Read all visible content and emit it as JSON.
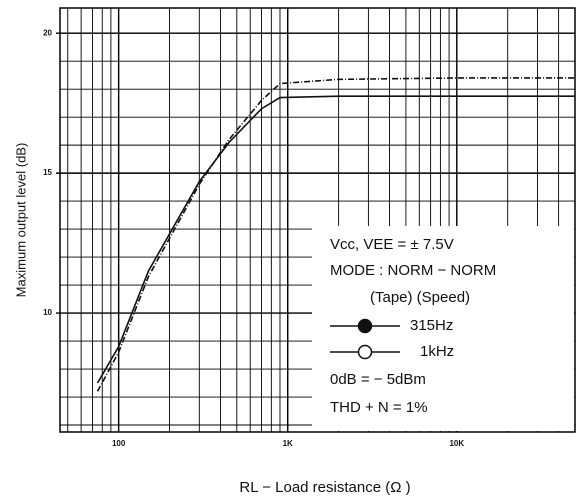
{
  "chart_data": {
    "type": "line",
    "x_label": "RL − Load resistance   (Ω )",
    "y_label": "Maximum output level   (dB)",
    "x": [
      75,
      100,
      150,
      300,
      450,
      700,
      900,
      2000,
      10000,
      50000
    ],
    "series": [
      {
        "name": "315Hz",
        "color": "#111111",
        "values": [
          7.2,
          8.6,
          11.3,
          14.6,
          16.2,
          17.6,
          18.2,
          18.35,
          18.4,
          18.4
        ]
      },
      {
        "name": "1kHz",
        "color": "#111111",
        "values": [
          7.5,
          8.8,
          11.5,
          14.7,
          16.1,
          17.3,
          17.7,
          17.75,
          17.75,
          17.75
        ]
      }
    ],
    "xlim": [
      45,
      50000
    ],
    "xscale": "log",
    "xticks": [
      {
        "value": 100,
        "label": "100"
      },
      {
        "value": 1000,
        "label": "1K"
      },
      {
        "value": 10000,
        "label": "10K"
      }
    ],
    "ylim": [
      5.75,
      20.9
    ],
    "yticks": [
      10,
      15,
      20
    ],
    "grid": true,
    "annotations": [
      "Vcc, VEE = ± 7.5V",
      "MODE : NORM − NORM",
      "(Tape)   (Speed)",
      "0dB = − 5dBm",
      "THD + N = 1%"
    ]
  }
}
